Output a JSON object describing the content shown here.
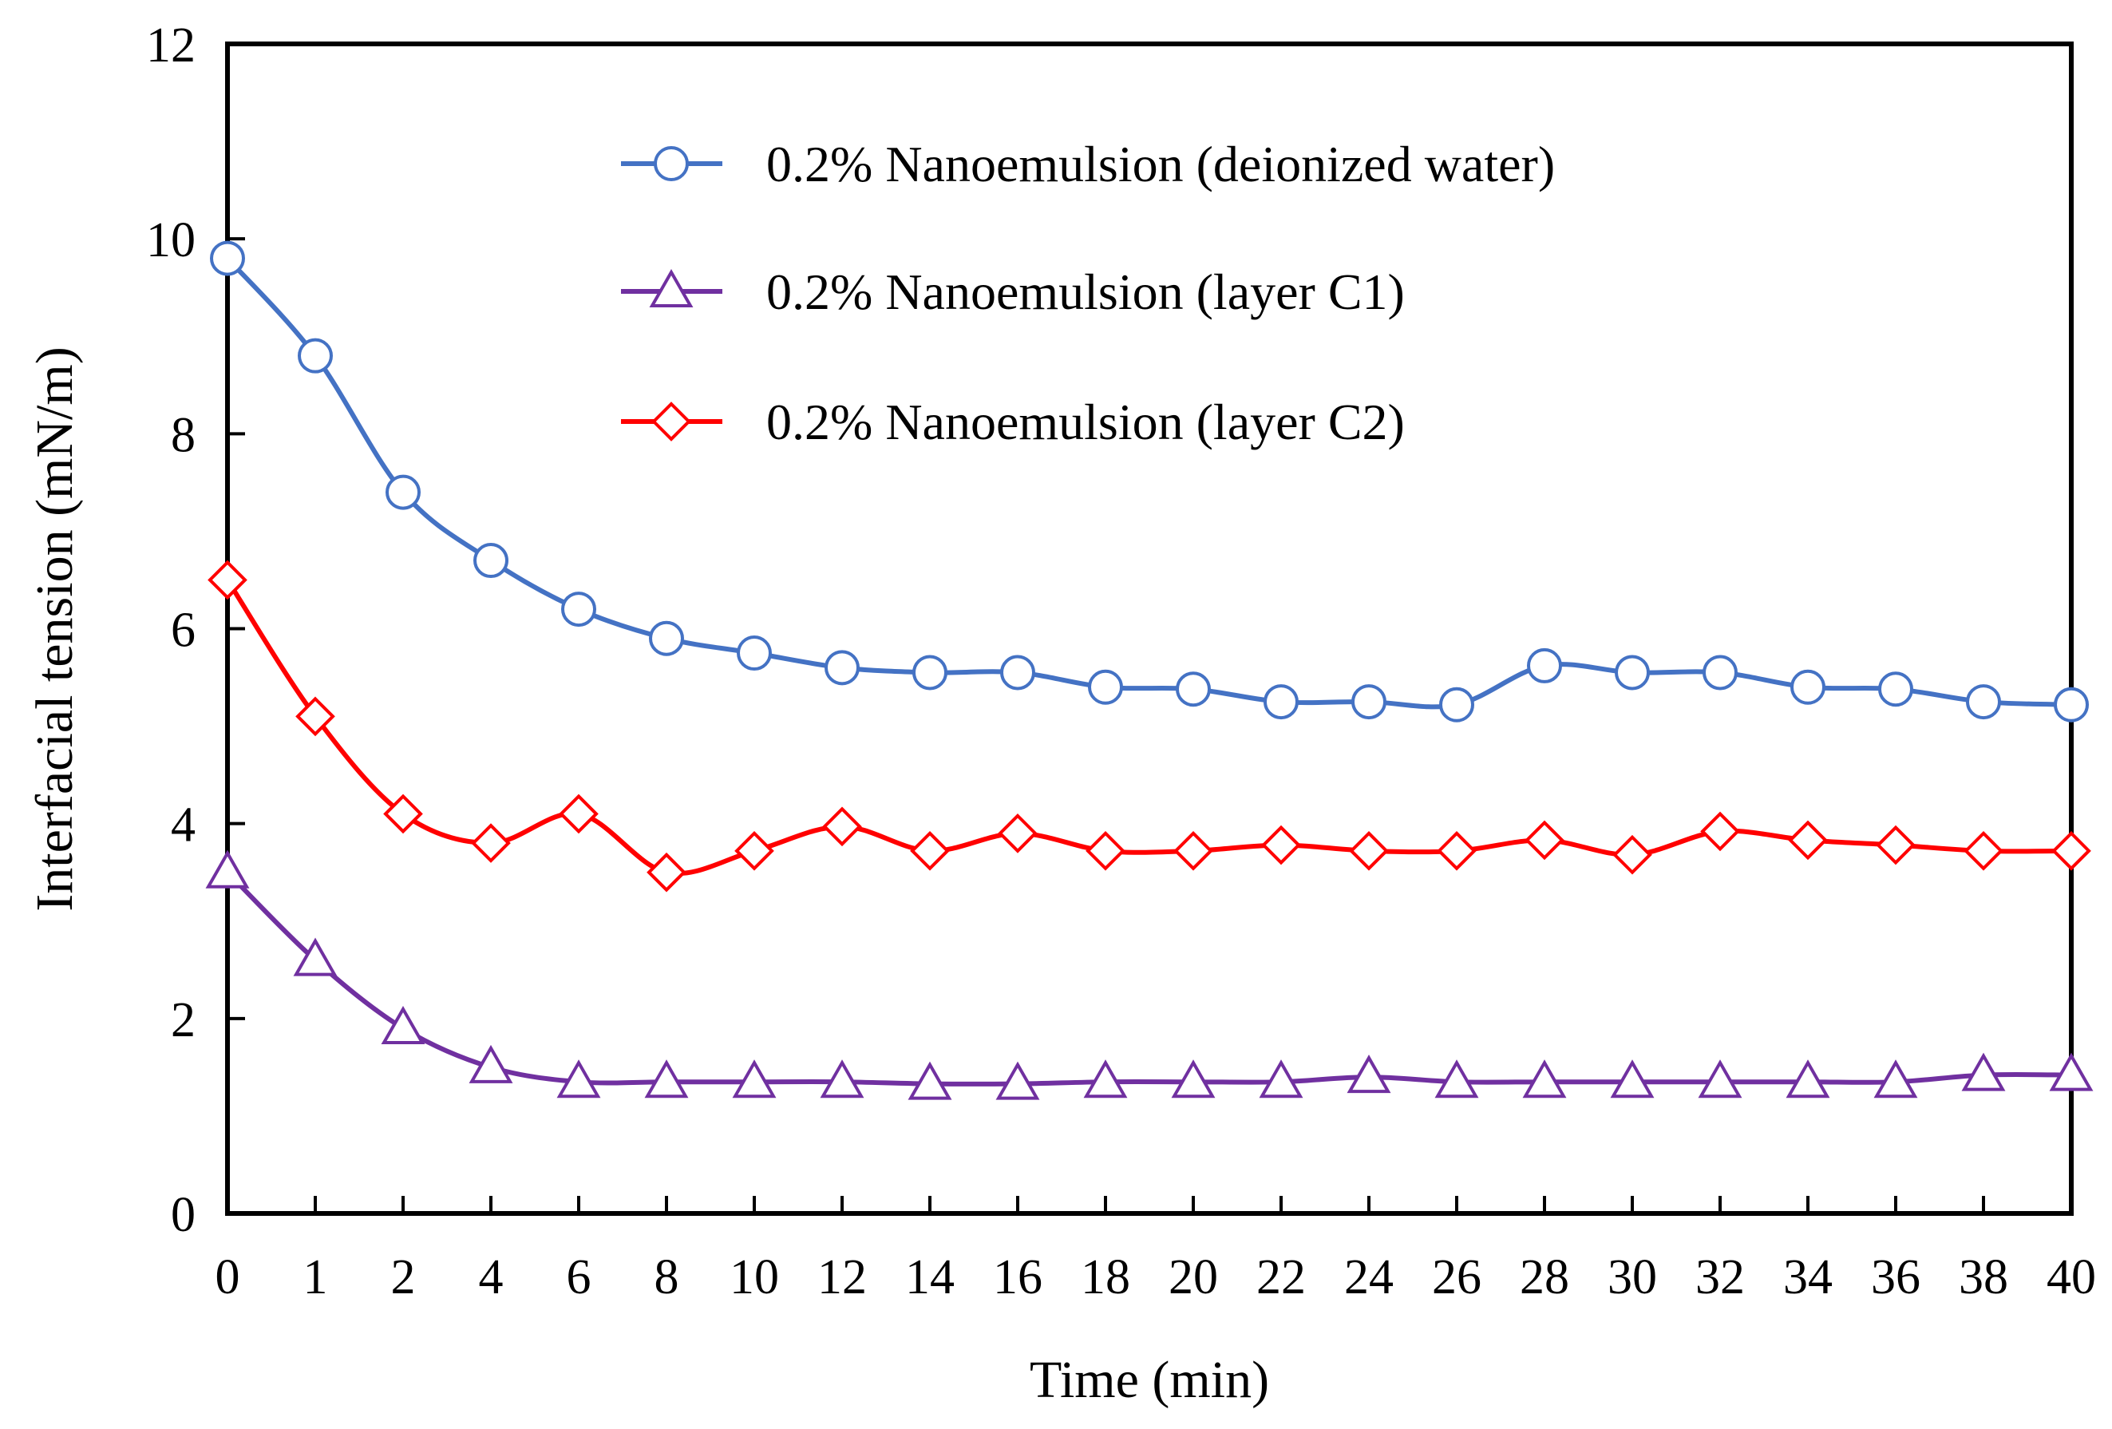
{
  "chart_data": {
    "type": "line",
    "title": "",
    "xlabel": "Time (min)",
    "ylabel": "Interfacial tension (mN/m)",
    "x": [
      "0",
      "1",
      "2",
      "4",
      "6",
      "8",
      "10",
      "12",
      "14",
      "16",
      "18",
      "20",
      "22",
      "24",
      "26",
      "28",
      "30",
      "32",
      "34",
      "36",
      "38",
      "40"
    ],
    "ylim": [
      0,
      12
    ],
    "yticks": [
      "0",
      "2",
      "4",
      "6",
      "8",
      "10",
      "12"
    ],
    "legend_position": "top-center",
    "grid": false,
    "series": [
      {
        "name": "0.2% Nanoemulsion (deionized water)",
        "color": "#4472C4",
        "marker": "circle",
        "values": [
          9.8,
          8.8,
          7.4,
          6.7,
          6.2,
          5.9,
          5.75,
          5.6,
          5.55,
          5.55,
          5.4,
          5.38,
          5.25,
          5.25,
          5.22,
          5.62,
          5.55,
          5.55,
          5.4,
          5.38,
          5.25,
          5.22
        ]
      },
      {
        "name": "0.2% Nanoemulsion (layer C1)",
        "color": "#7030A0",
        "marker": "triangle",
        "values": [
          3.5,
          2.6,
          1.9,
          1.5,
          1.35,
          1.35,
          1.35,
          1.35,
          1.33,
          1.33,
          1.35,
          1.35,
          1.35,
          1.4,
          1.35,
          1.35,
          1.35,
          1.35,
          1.35,
          1.35,
          1.42,
          1.42
        ]
      },
      {
        "name": "0.2% Nanoemulsion (layer C2)",
        "color": "#FF0000",
        "marker": "diamond",
        "values": [
          6.5,
          5.1,
          4.1,
          3.8,
          4.1,
          3.5,
          3.72,
          3.97,
          3.72,
          3.9,
          3.72,
          3.72,
          3.78,
          3.72,
          3.72,
          3.83,
          3.68,
          3.92,
          3.83,
          3.78,
          3.72,
          3.72
        ]
      }
    ]
  }
}
